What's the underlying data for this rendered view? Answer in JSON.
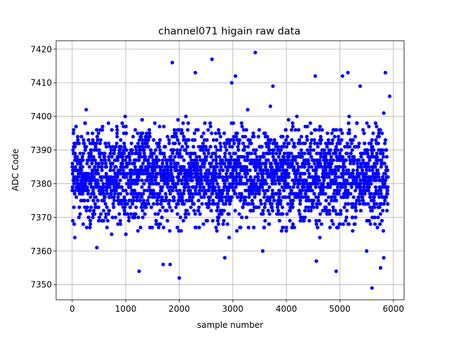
{
  "chart_data": {
    "type": "scatter",
    "title": "channel071 higain raw data",
    "xlabel": "sample number",
    "ylabel": "ADC Code",
    "xlim": [
      -300,
      6200
    ],
    "ylim": [
      7345.5,
      7422.5
    ],
    "xticks": [
      0,
      1000,
      2000,
      3000,
      4000,
      5000,
      6000
    ],
    "yticks": [
      7350,
      7360,
      7370,
      7380,
      7390,
      7400,
      7410,
      7420
    ],
    "grid": true,
    "marker_color": "#0000ff",
    "n_samples": 5900,
    "core_range": [
      7366,
      7398
    ],
    "outliers": [
      {
        "x": 1250,
        "y": 7354
      },
      {
        "x": 1870,
        "y": 7416
      },
      {
        "x": 2000,
        "y": 7352
      },
      {
        "x": 2300,
        "y": 7413
      },
      {
        "x": 2610,
        "y": 7417
      },
      {
        "x": 2980,
        "y": 7410
      },
      {
        "x": 3050,
        "y": 7412
      },
      {
        "x": 3420,
        "y": 7419
      },
      {
        "x": 3750,
        "y": 7409
      },
      {
        "x": 4540,
        "y": 7412
      },
      {
        "x": 4560,
        "y": 7357
      },
      {
        "x": 4930,
        "y": 7354
      },
      {
        "x": 5050,
        "y": 7412
      },
      {
        "x": 5150,
        "y": 7413
      },
      {
        "x": 5380,
        "y": 7409
      },
      {
        "x": 5600,
        "y": 7349
      },
      {
        "x": 5760,
        "y": 7355
      },
      {
        "x": 5850,
        "y": 7413
      },
      {
        "x": 5930,
        "y": 7406
      },
      {
        "x": 1700,
        "y": 7356
      },
      {
        "x": 1830,
        "y": 7356
      },
      {
        "x": 2850,
        "y": 7358
      },
      {
        "x": 3560,
        "y": 7360
      },
      {
        "x": 5500,
        "y": 7360
      },
      {
        "x": 5820,
        "y": 7358
      }
    ]
  }
}
